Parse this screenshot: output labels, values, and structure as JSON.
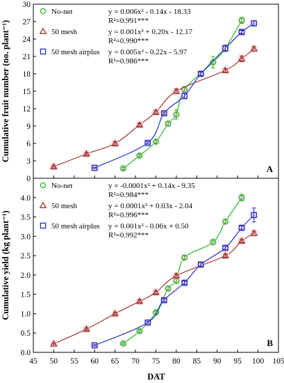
{
  "figure": {
    "xlabel": "DAT",
    "x_ticks": [
      45,
      50,
      55,
      60,
      65,
      70,
      75,
      80,
      85,
      90,
      95,
      100,
      105
    ],
    "xlim": [
      45,
      105
    ]
  },
  "chart_data": [
    {
      "type": "scatter",
      "panel_label": "A",
      "ylabel": "Cumulative fruit number (no. plant⁻¹)",
      "ylim": [
        0,
        30
      ],
      "y_ticks": [
        0,
        3,
        6,
        9,
        12,
        15,
        18,
        21,
        24,
        27,
        30
      ],
      "legend_position": "top-left",
      "series": [
        {
          "name": "No-net",
          "color": "#22bb22",
          "marker": "circle",
          "x": [
            67,
            71,
            75,
            78,
            80,
            82,
            89,
            92,
            96
          ],
          "y": [
            1.7,
            3.9,
            6.3,
            9.4,
            11.0,
            15.3,
            20.0,
            22.4,
            27.2
          ],
          "err": [
            0.2,
            0.2,
            0.3,
            0.4,
            0.8,
            0.5,
            1.0,
            0.6,
            0.5
          ],
          "fit": {
            "a": 0.006,
            "b": -0.14,
            "c": -18.33,
            "x_range": [
              67,
              96
            ]
          },
          "equation": "y = 0.006x² - 0.14x - 18.33",
          "r2": "R²=0.991***"
        },
        {
          "name": "50 mesh",
          "color": "#a0342a",
          "marker": "triangle",
          "x": [
            50,
            58,
            65,
            71,
            75,
            80,
            92,
            96,
            99
          ],
          "y": [
            2.0,
            4.2,
            6.0,
            9.2,
            11.4,
            15.0,
            18.6,
            20.6,
            22.3
          ],
          "err": [
            0.2,
            0.2,
            0.3,
            0.3,
            0.3,
            0.4,
            0.3,
            0.5,
            0.4
          ],
          "fit": {
            "a": 0.001,
            "b": 0.2,
            "c": -12.17,
            "x_range": [
              50,
              99
            ]
          },
          "equation": "y = 0.001x² + 0.20x - 12.17",
          "r2": "R²=0.990***"
        },
        {
          "name": "50 mesh airplus",
          "color": "#1f2fbf",
          "marker": "square",
          "x": [
            60,
            73,
            77,
            82,
            86,
            92,
            96,
            99
          ],
          "y": [
            1.8,
            6.1,
            11.2,
            14.2,
            18.0,
            22.4,
            25.2,
            26.7
          ],
          "err": [
            0.1,
            0.2,
            0.2,
            0.5,
            0.3,
            0.5,
            0.3,
            0.4
          ],
          "fit": {
            "a": 0.005,
            "b": -0.22,
            "c": -5.97,
            "x_range": [
              60,
              99
            ]
          },
          "equation": "y = 0.005x² - 0.22x - 5.97",
          "r2": "R²=0.986***"
        }
      ]
    },
    {
      "type": "scatter",
      "panel_label": "B",
      "ylabel": "Cumulative yield (kg plant⁻¹)",
      "ylim": [
        0.0,
        4.5
      ],
      "y_ticks": [
        "0.0",
        "0.5",
        "1.0",
        "1.5",
        "2.0",
        "2.5",
        "3.0",
        "3.5",
        "4.0"
      ],
      "legend_position": "top-left",
      "series": [
        {
          "name": "No-net",
          "color": "#22bb22",
          "marker": "circle",
          "x": [
            67,
            71,
            75,
            78,
            80,
            82,
            89,
            92,
            96
          ],
          "y": [
            0.23,
            0.55,
            1.03,
            1.65,
            1.85,
            2.45,
            2.85,
            3.38,
            4.0
          ],
          "err": [
            0.02,
            0.03,
            0.04,
            0.05,
            0.05,
            0.05,
            0.06,
            0.05,
            0.08
          ],
          "fit": {
            "a": -0.0001,
            "b": 0.14,
            "c": -9.35,
            "x_range": [
              67,
              96
            ]
          },
          "equation": "y = -0.0001x² + 0.14x - 9.35",
          "r2": "R²=0.984***"
        },
        {
          "name": "50 mesh",
          "color": "#a0342a",
          "marker": "triangle",
          "x": [
            50,
            58,
            65,
            71,
            75,
            80,
            92,
            96,
            99
          ],
          "y": [
            0.22,
            0.6,
            1.0,
            1.32,
            1.55,
            1.98,
            2.5,
            2.88,
            3.08
          ],
          "err": [
            0.02,
            0.03,
            0.03,
            0.04,
            0.04,
            0.05,
            0.04,
            0.04,
            0.06
          ],
          "fit": {
            "a": 0.0001,
            "b": 0.03,
            "c": -2.04,
            "x_range": [
              50,
              99
            ]
          },
          "equation": "y = 0.0001x² + 0.03x - 2.04",
          "r2": "R²=0.996***"
        },
        {
          "name": "50 mesh airplus",
          "color": "#1f2fbf",
          "marker": "square",
          "x": [
            60,
            73,
            77,
            82,
            86,
            92,
            96,
            99
          ],
          "y": [
            0.18,
            0.77,
            1.35,
            1.8,
            2.27,
            2.7,
            3.22,
            3.55
          ],
          "err": [
            0.02,
            0.03,
            0.04,
            0.04,
            0.05,
            0.05,
            0.05,
            0.18
          ],
          "fit": {
            "a": 0.001,
            "b": -0.06,
            "c": 0.5,
            "x_range": [
              60,
              99
            ]
          },
          "equation": "y = 0.001x² - 0.06x + 0.50",
          "r2": "R²=0.992***"
        }
      ]
    }
  ]
}
